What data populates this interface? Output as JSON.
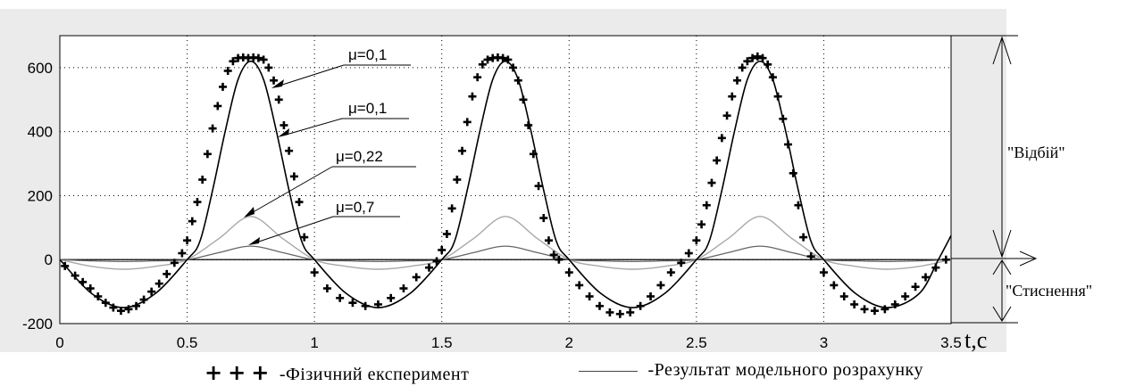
{
  "chart_data": {
    "type": "line",
    "xlabel": "t,c",
    "xlim": [
      0,
      3.5
    ],
    "ylim": [
      -200,
      700
    ],
    "x_ticks": [
      "0",
      "0.5",
      "1",
      "1.5",
      "2",
      "2.5",
      "3",
      "3.5"
    ],
    "y_ticks": [
      "600",
      "400",
      "200",
      "0",
      "-200"
    ],
    "grid": true,
    "series": [
      {
        "kind": "model-mu-0.1",
        "x": [
          0,
          0.125,
          0.25,
          0.375,
          0.5,
          0.55,
          0.6,
          0.65,
          0.7,
          0.75,
          0.8,
          0.85,
          0.9,
          0.95,
          1.0,
          1.125,
          1.25,
          1.375,
          1.5,
          1.55,
          1.6,
          1.65,
          1.7,
          1.75,
          1.8,
          1.85,
          1.9,
          1.95,
          2.0,
          2.125,
          2.25,
          2.375,
          2.5,
          2.55,
          2.6,
          2.65,
          2.7,
          2.75,
          2.8,
          2.85,
          2.9,
          2.95,
          3.0,
          3.125,
          3.25,
          3.375,
          3.45,
          3.5
        ],
        "y": [
          0,
          -106,
          -150,
          -106,
          0,
          57,
          217,
          403,
          563,
          620,
          563,
          403,
          217,
          57,
          0,
          -106,
          -150,
          -106,
          0,
          57,
          217,
          403,
          563,
          620,
          563,
          403,
          217,
          57,
          0,
          -106,
          -150,
          -106,
          0,
          57,
          217,
          403,
          563,
          620,
          563,
          403,
          217,
          57,
          0,
          -106,
          -150,
          -106,
          0,
          75
        ]
      },
      {
        "kind": "model-mu-0.22",
        "x": [
          0,
          0.125,
          0.25,
          0.375,
          0.5,
          0.625,
          0.75,
          0.875,
          1.0,
          1.125,
          1.25,
          1.375,
          1.5,
          1.625,
          1.75,
          1.875,
          2.0,
          2.125,
          2.25,
          2.375,
          2.5,
          2.625,
          2.75,
          2.875,
          3.0,
          3.125,
          3.25,
          3.375,
          3.5
        ],
        "y": [
          0,
          -21,
          -30,
          -21,
          0,
          66,
          135,
          66,
          0,
          -21,
          -30,
          -21,
          0,
          66,
          135,
          66,
          0,
          -21,
          -30,
          -21,
          0,
          66,
          135,
          66,
          0,
          -21,
          -30,
          -21,
          0
        ]
      },
      {
        "kind": "model-mu-0.7",
        "x": [
          0,
          0.125,
          0.25,
          0.375,
          0.5,
          0.625,
          0.75,
          0.875,
          1.0,
          1.125,
          1.25,
          1.375,
          1.5,
          1.625,
          1.75,
          1.875,
          2.0,
          2.125,
          2.25,
          2.375,
          2.5,
          2.625,
          2.75,
          2.875,
          3.0,
          3.125,
          3.25,
          3.375,
          3.5
        ],
        "y": [
          0,
          -4,
          -6,
          -4,
          0,
          22,
          42,
          22,
          0,
          -4,
          -6,
          -4,
          0,
          22,
          42,
          22,
          0,
          -4,
          -6,
          -4,
          0,
          22,
          42,
          22,
          0,
          -4,
          -6,
          -4,
          0
        ]
      },
      {
        "kind": "experiment",
        "x": [
          0.02,
          0.06,
          0.09,
          0.12,
          0.15,
          0.18,
          0.21,
          0.24,
          0.27,
          0.3,
          0.33,
          0.36,
          0.39,
          0.42,
          0.45,
          0.48,
          0.5,
          0.52,
          0.54,
          0.56,
          0.58,
          0.6,
          0.62,
          0.64,
          0.66,
          0.68,
          0.7,
          0.72,
          0.74,
          0.76,
          0.78,
          0.8,
          0.82,
          0.84,
          0.86,
          0.88,
          0.9,
          0.92,
          0.94,
          0.96,
          1.0,
          1.05,
          1.1,
          1.15,
          1.2,
          1.25,
          1.3,
          1.35,
          1.4,
          1.45,
          1.48,
          1.5,
          1.52,
          1.54,
          1.56,
          1.58,
          1.6,
          1.62,
          1.64,
          1.66,
          1.68,
          1.7,
          1.72,
          1.74,
          1.76,
          1.78,
          1.8,
          1.82,
          1.84,
          1.86,
          1.88,
          1.9,
          1.92,
          1.94,
          1.96,
          2.0,
          2.04,
          2.08,
          2.12,
          2.16,
          2.2,
          2.24,
          2.28,
          2.32,
          2.36,
          2.4,
          2.44,
          2.47,
          2.5,
          2.52,
          2.54,
          2.56,
          2.58,
          2.6,
          2.62,
          2.64,
          2.66,
          2.68,
          2.7,
          2.72,
          2.74,
          2.76,
          2.78,
          2.8,
          2.82,
          2.84,
          2.86,
          2.88,
          2.9,
          2.92,
          2.95,
          3.0,
          3.04,
          3.08,
          3.12,
          3.16,
          3.2,
          3.24,
          3.28,
          3.32,
          3.36,
          3.4,
          3.44,
          3.48
        ],
        "y": [
          -20,
          -50,
          -70,
          -90,
          -115,
          -135,
          -150,
          -160,
          -155,
          -145,
          -125,
          -100,
          -75,
          -45,
          -10,
          20,
          60,
          120,
          180,
          250,
          330,
          410,
          480,
          540,
          590,
          620,
          630,
          632,
          630,
          632,
          630,
          625,
          600,
          560,
          500,
          420,
          340,
          260,
          180,
          70,
          -40,
          -90,
          -120,
          -135,
          -145,
          -140,
          -120,
          -90,
          -55,
          -25,
          -5,
          30,
          80,
          160,
          250,
          340,
          430,
          510,
          570,
          610,
          625,
          630,
          632,
          630,
          625,
          600,
          560,
          500,
          420,
          330,
          230,
          130,
          60,
          15,
          0,
          -40,
          -80,
          -115,
          -145,
          -165,
          -170,
          -165,
          -145,
          -115,
          -80,
          -40,
          -10,
          20,
          60,
          110,
          170,
          240,
          310,
          380,
          450,
          510,
          560,
          600,
          620,
          630,
          635,
          630,
          610,
          570,
          510,
          440,
          360,
          270,
          170,
          70,
          10,
          -40,
          -80,
          -115,
          -140,
          -155,
          -160,
          -155,
          -140,
          -115,
          -85,
          -55,
          -25,
          0
        ]
      }
    ],
    "annotations": [
      "μ=0,1",
      "μ=0,1",
      "μ=0,22",
      "μ=0,7"
    ],
    "side_labels": [
      "\"Відбій\"",
      "\"Стиснення\""
    ],
    "legend_entries": [
      "-Фізичний експеримент",
      "-Результат модельного розрахунку"
    ]
  }
}
